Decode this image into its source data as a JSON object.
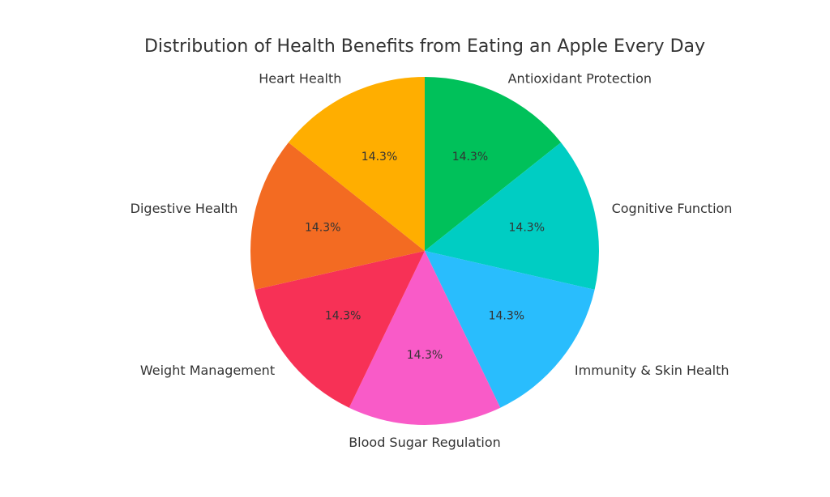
{
  "chart_data": {
    "type": "pie",
    "title": "Distribution of Health Benefits from Eating an Apple Every Day",
    "start_angle_deg": 90,
    "direction": "clockwise",
    "slices": [
      {
        "label": "Antioxidant Protection",
        "value": 14.3,
        "pct_label": "14.3%",
        "color": "#00c15a"
      },
      {
        "label": "Cognitive Function",
        "value": 14.3,
        "pct_label": "14.3%",
        "color": "#00cdc3"
      },
      {
        "label": "Immunity & Skin Health",
        "value": 14.3,
        "pct_label": "14.3%",
        "color": "#29bdfd"
      },
      {
        "label": "Blood Sugar Regulation",
        "value": 14.3,
        "pct_label": "14.3%",
        "color": "#f95bc8"
      },
      {
        "label": "Weight Management",
        "value": 14.3,
        "pct_label": "14.3%",
        "color": "#f73156"
      },
      {
        "label": "Digestive Health",
        "value": 14.3,
        "pct_label": "14.3%",
        "color": "#f36b22"
      },
      {
        "label": "Heart Health",
        "value": 14.3,
        "pct_label": "14.3%",
        "color": "#ffae00"
      }
    ]
  }
}
